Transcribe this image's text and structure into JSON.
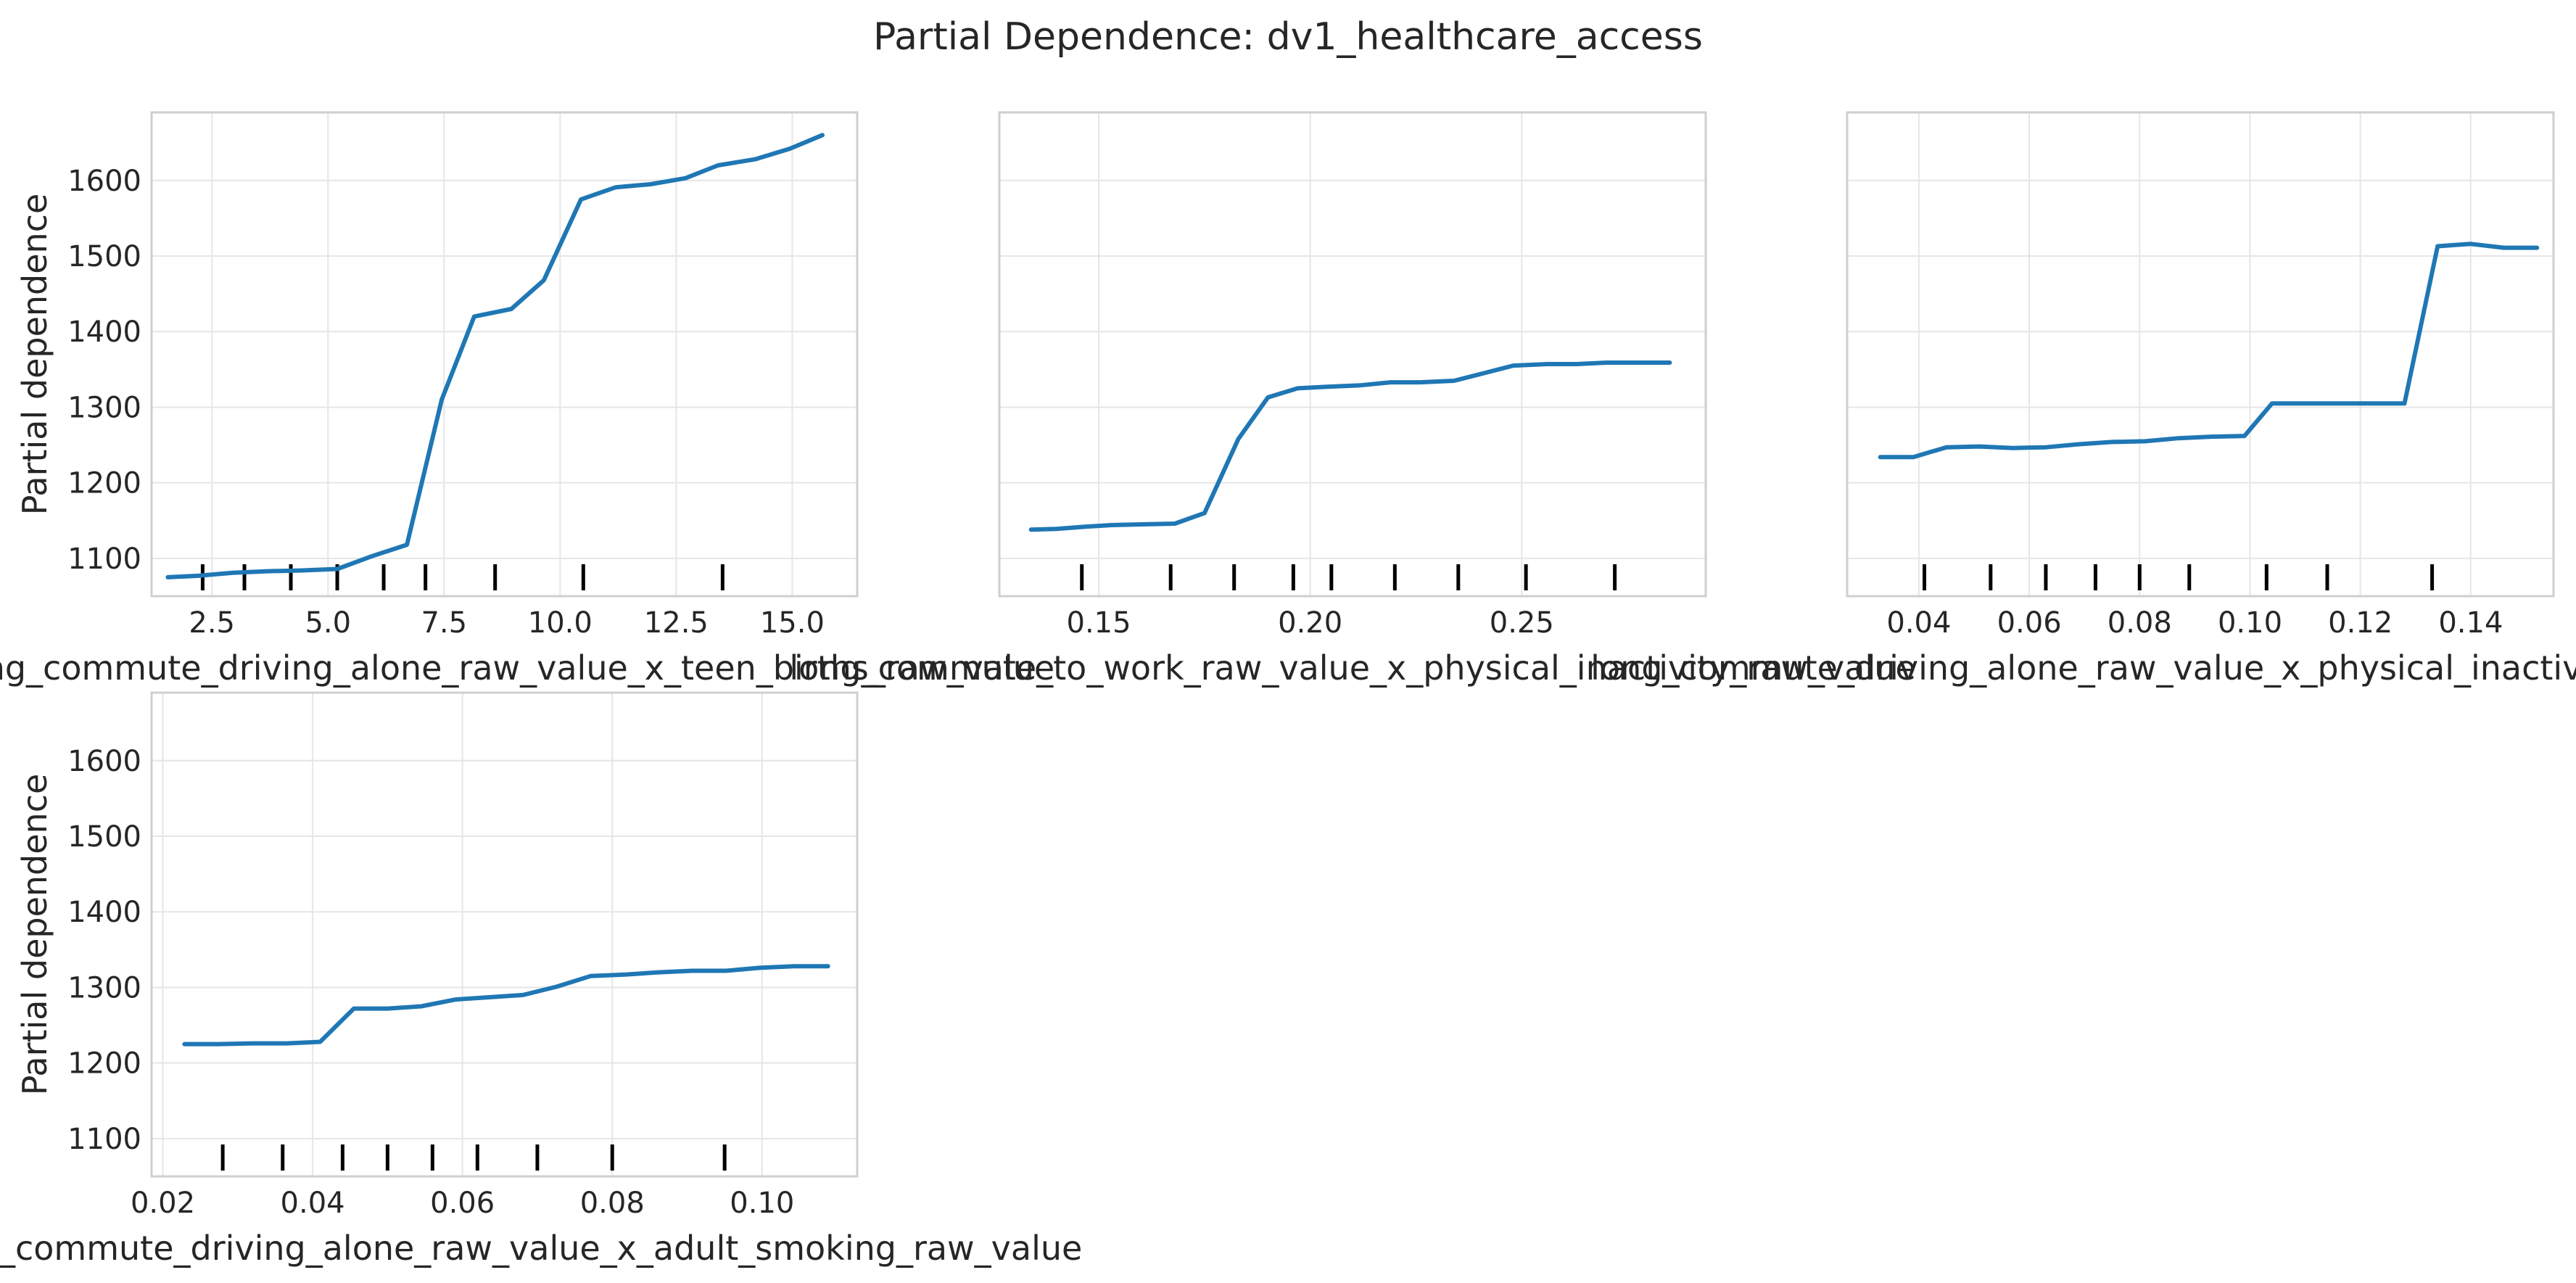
{
  "figure": {
    "title": "Partial Dependence: dv1_healthcare_access"
  },
  "chart_data": [
    {
      "type": "line",
      "title": "",
      "xlabel": "long_commute_driving_alone_raw_value_x_teen_births_raw_value",
      "ylabel": "Partial dependence",
      "xlim": [
        1.2,
        16.4
      ],
      "ylim": [
        1050,
        1690
      ],
      "x_ticks": [
        2.5,
        5.0,
        7.5,
        10.0,
        12.5,
        15.0
      ],
      "x_tick_labels": [
        "2.5",
        "5.0",
        "7.5",
        "10.0",
        "12.5",
        "15.0"
      ],
      "y_ticks": [
        1100,
        1200,
        1300,
        1400,
        1500,
        1600
      ],
      "y_tick_labels": [
        "1100",
        "1200",
        "1300",
        "1400",
        "1500",
        "1600"
      ],
      "show_y_tick_labels": true,
      "grid": true,
      "series": [
        {
          "x": [
            1.55,
            2.2,
            2.95,
            3.7,
            4.4,
            5.2,
            5.95,
            6.7,
            7.45,
            8.15,
            8.95,
            9.65,
            10.45,
            11.2,
            11.95,
            12.7,
            13.4,
            14.2,
            14.95,
            15.65
          ],
          "y": [
            1075,
            1077,
            1081,
            1083,
            1084,
            1086,
            1103,
            1118,
            1310,
            1420,
            1430,
            1468,
            1575,
            1591,
            1595,
            1603,
            1620,
            1628,
            1642,
            1660
          ]
        }
      ],
      "rug": [
        2.3,
        3.2,
        4.2,
        5.2,
        6.2,
        7.1,
        8.6,
        10.5,
        13.5
      ]
    },
    {
      "type": "line",
      "title": "",
      "xlabel": "long_commute_to_work_raw_value_x_physical_inactivity_raw_value",
      "ylabel": "",
      "xlim": [
        0.1265,
        0.2935
      ],
      "ylim": [
        1050,
        1690
      ],
      "x_ticks": [
        0.15,
        0.2,
        0.25
      ],
      "x_tick_labels": [
        "0.15",
        "0.20",
        "0.25"
      ],
      "y_ticks": [
        1100,
        1200,
        1300,
        1400,
        1500,
        1600
      ],
      "y_tick_labels": [],
      "show_y_tick_labels": false,
      "grid": true,
      "series": [
        {
          "x": [
            0.134,
            0.14,
            0.147,
            0.153,
            0.16,
            0.168,
            0.175,
            0.183,
            0.19,
            0.197,
            0.204,
            0.212,
            0.219,
            0.226,
            0.234,
            0.241,
            0.248,
            0.256,
            0.263,
            0.27,
            0.278,
            0.285
          ],
          "y": [
            1138,
            1139,
            1142,
            1144,
            1145,
            1146,
            1160,
            1258,
            1313,
            1325,
            1327,
            1329,
            1333,
            1333,
            1335,
            1345,
            1355,
            1357,
            1357,
            1359,
            1359,
            1359
          ]
        }
      ],
      "rug": [
        0.146,
        0.167,
        0.182,
        0.196,
        0.205,
        0.22,
        0.235,
        0.251,
        0.272
      ]
    },
    {
      "type": "line",
      "title": "",
      "xlabel": "long_commute_driving_alone_raw_value_x_physical_inactivity_raw_value",
      "ylabel": "",
      "xlim": [
        0.027,
        0.155
      ],
      "ylim": [
        1050,
        1690
      ],
      "x_ticks": [
        0.04,
        0.06,
        0.08,
        0.1,
        0.12,
        0.14
      ],
      "x_tick_labels": [
        "0.04",
        "0.06",
        "0.08",
        "0.10",
        "0.12",
        "0.14"
      ],
      "y_ticks": [
        1100,
        1200,
        1300,
        1400,
        1500,
        1600
      ],
      "y_tick_labels": [],
      "show_y_tick_labels": false,
      "grid": true,
      "series": [
        {
          "x": [
            0.033,
            0.039,
            0.045,
            0.051,
            0.057,
            0.063,
            0.069,
            0.075,
            0.081,
            0.087,
            0.093,
            0.099,
            0.104,
            0.11,
            0.116,
            0.122,
            0.128,
            0.134,
            0.14,
            0.146,
            0.152
          ],
          "y": [
            1234,
            1234,
            1247,
            1248,
            1246,
            1247,
            1251,
            1254,
            1255,
            1259,
            1261,
            1262,
            1305,
            1305,
            1305,
            1305,
            1305,
            1513,
            1516,
            1511,
            1511
          ]
        }
      ],
      "rug": [
        0.041,
        0.053,
        0.063,
        0.072,
        0.08,
        0.089,
        0.103,
        0.114,
        0.133
      ]
    },
    {
      "type": "line",
      "title": "",
      "xlabel": "long_commute_driving_alone_raw_value_x_adult_smoking_raw_value",
      "ylabel": "Partial dependence",
      "xlim": [
        0.0185,
        0.1127
      ],
      "ylim": [
        1050,
        1690
      ],
      "x_ticks": [
        0.02,
        0.04,
        0.06,
        0.08,
        0.1
      ],
      "x_tick_labels": [
        "0.02",
        "0.04",
        "0.06",
        "0.08",
        "0.10"
      ],
      "y_ticks": [
        1100,
        1200,
        1300,
        1400,
        1500,
        1600
      ],
      "y_tick_labels": [
        "1100",
        "1200",
        "1300",
        "1400",
        "1500",
        "1600"
      ],
      "show_y_tick_labels": true,
      "grid": true,
      "series": [
        {
          "x": [
            0.0229,
            0.0274,
            0.0319,
            0.0365,
            0.041,
            0.0455,
            0.05,
            0.0545,
            0.0591,
            0.0636,
            0.0681,
            0.0726,
            0.0771,
            0.0817,
            0.0862,
            0.0907,
            0.0952,
            0.0997,
            0.1043,
            0.1088
          ],
          "y": [
            1225,
            1225,
            1226,
            1226,
            1228,
            1272,
            1272,
            1275,
            1284,
            1287,
            1290,
            1301,
            1315,
            1317,
            1320,
            1322,
            1322,
            1326,
            1328,
            1328
          ]
        }
      ],
      "rug": [
        0.028,
        0.036,
        0.044,
        0.05,
        0.056,
        0.062,
        0.07,
        0.08,
        0.095
      ]
    }
  ]
}
